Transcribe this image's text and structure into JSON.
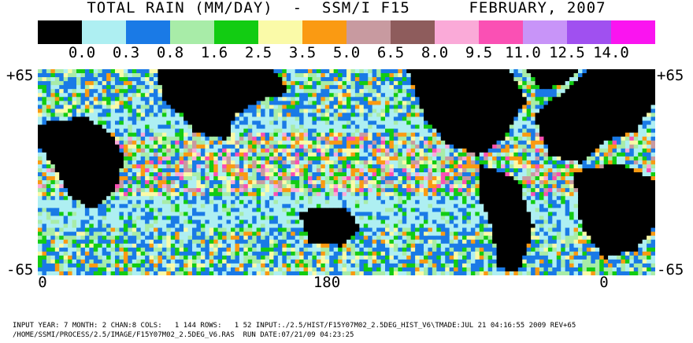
{
  "title": "TOTAL RAIN (MM/DAY)  -  SSM/I F15      FEBRUARY, 2007",
  "legend": {
    "colors": [
      "#000000",
      "#aeeff2",
      "#1a7ae6",
      "#a8eca8",
      "#12cc12",
      "#fafaa8",
      "#fa9a12",
      "#c89aa0",
      "#8e5c5c",
      "#faaad8",
      "#fa50b4",
      "#c894f8",
      "#a050f0",
      "#fa14f0"
    ],
    "labels": [
      "0.0",
      "0.3",
      "0.8",
      "1.6",
      "2.5",
      "3.5",
      "5.0",
      "6.5",
      "8.0",
      "9.5",
      "11.0",
      "12.5",
      "14.0"
    ]
  },
  "map": {
    "lat_top_left": "+65",
    "lat_top_right": "+65",
    "lat_bottom_left": "-65",
    "lat_bottom_right": "-65",
    "lon_labels": [
      "0",
      "180",
      "0"
    ],
    "land_color": "#000000",
    "ocean_base_color": "#aeeff2"
  },
  "footer": {
    "line1": "INPUT YEAR: 7 MONTH: 2 CHAN:8 COLS:   1 144 ROWS:   1 52 INPUT:./2.5/HIST/F15Y07M02_2.5DEG_HIST_V6\\TMADE:JUL 21 04:16:55 2009 REV+65",
    "line2": "/HOME/SSMI/PROCESS/2.5/IMAGE/F15Y07M02_2.5DEG_V6.RAS  RUN DATE:07/21/09 04:23:25"
  }
}
